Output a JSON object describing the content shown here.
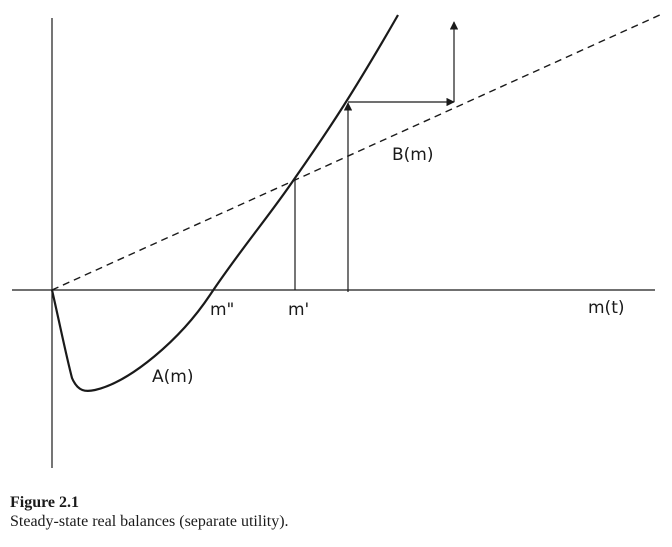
{
  "figure": {
    "labels": {
      "m_double_prime": "m\"",
      "m_prime": "m'",
      "x_axis": "m(t)",
      "curve_b": "B(m)",
      "curve_a": "A(m)"
    },
    "caption": {
      "title": "Figure 2.1",
      "text": "Steady-state real balances (separate utility)."
    }
  }
}
